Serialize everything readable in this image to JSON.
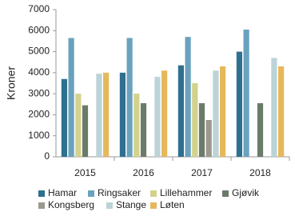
{
  "chart_data": {
    "type": "bar",
    "y_label": "Kroner",
    "categories": [
      "2015",
      "2016",
      "2017",
      "2018"
    ],
    "series": [
      {
        "name": "Hamar",
        "color": "#2f6f8f",
        "values": [
          3700,
          4000,
          4350,
          5000
        ]
      },
      {
        "name": "Ringsaker",
        "color": "#6aa2bd",
        "values": [
          5650,
          5650,
          5700,
          6050
        ]
      },
      {
        "name": "Lillehammer",
        "color": "#d2d28c",
        "values": [
          3000,
          3000,
          3500,
          null
        ]
      },
      {
        "name": "Gjøvik",
        "color": "#6b7b6a",
        "values": [
          2450,
          2550,
          2550,
          2550
        ]
      },
      {
        "name": "Kongsberg",
        "color": "#9b988f",
        "values": [
          null,
          null,
          1750,
          null
        ]
      },
      {
        "name": "Stange",
        "color": "#bcd3d7",
        "values": [
          3950,
          3800,
          4100,
          4700
        ]
      },
      {
        "name": "Løten",
        "color": "#e6b85c",
        "values": [
          4000,
          4100,
          4300,
          4300
        ]
      }
    ],
    "ylim": [
      0,
      7000
    ],
    "yticks": [
      0,
      1000,
      2000,
      3000,
      4000,
      5000,
      6000,
      7000
    ],
    "grid": false
  }
}
